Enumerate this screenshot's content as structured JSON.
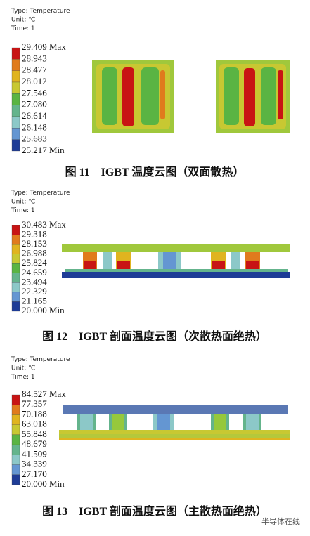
{
  "figures": [
    {
      "header": [
        "Type: Temperature",
        "Unit: ℃",
        "Time: 1"
      ],
      "legend": [
        "29.409 Max",
        "28.943",
        "28.477",
        "28.012",
        "27.546",
        "27.080",
        "26.614",
        "26.148",
        "25.683",
        "25.217 Min"
      ],
      "caption": "图 11　IGBT 温度云图（双面散热）"
    },
    {
      "header": [
        "Type: Temperature",
        "Unit: ℃",
        "Time: 1"
      ],
      "legend": [
        "30.483 Max",
        "29.318",
        "28.153",
        "26.988",
        "25.824",
        "24.659",
        "23.494",
        "22.329",
        "21.165",
        "20.000 Min"
      ],
      "caption": "图 12　IGBT 剖面温度云图（次散热面绝热）"
    },
    {
      "header": [
        "Type: Temperature",
        "Unit: ℃",
        "Time: 1"
      ],
      "legend": [
        "84.527 Max",
        "77.357",
        "70.188",
        "63.018",
        "55.848",
        "48.679",
        "41.509",
        "34.339",
        "27.170",
        "20.000 Min"
      ],
      "caption": "图 13　IGBT 剖面温度云图（主散热面绝热）"
    }
  ],
  "watermark": "半导体在线"
}
